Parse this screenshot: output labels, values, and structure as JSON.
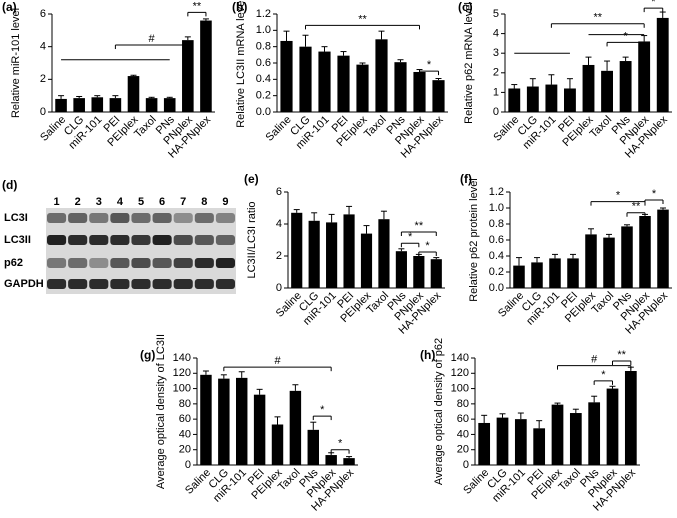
{
  "chart_data": [
    {
      "type": "bar",
      "label": "(a)",
      "y_label": "Relative miR-101 level",
      "categories": [
        "Saline",
        "CLG",
        "miR-101",
        "PEI",
        "PEIplex",
        "Taxol",
        "PNs",
        "PNplex",
        "HA-PNplex"
      ],
      "values": [
        0.8,
        0.85,
        0.9,
        0.85,
        2.2,
        0.85,
        0.85,
        4.4,
        5.6
      ],
      "errors": [
        0.2,
        0.1,
        0.1,
        0.15,
        0.05,
        0.05,
        0.05,
        0.2,
        0.1
      ],
      "color": "#000000",
      "ylim": [
        0,
        6
      ],
      "yticks": [
        0,
        2,
        4,
        6
      ],
      "annotations": [
        "#",
        "**"
      ]
    },
    {
      "type": "bar",
      "label": "(b)",
      "y_label": "Relative LC3II mRNA level",
      "categories": [
        "Saline",
        "CLG",
        "miR-101",
        "PEI",
        "PEIplex",
        "Taxol",
        "PNs",
        "PNplex",
        "HA-PNplex"
      ],
      "values": [
        0.87,
        0.8,
        0.74,
        0.69,
        0.58,
        0.89,
        0.61,
        0.49,
        0.39
      ],
      "errors": [
        0.12,
        0.14,
        0.06,
        0.05,
        0.02,
        0.1,
        0.03,
        0.03,
        0.02
      ],
      "color": "#000000",
      "ylim": [
        0,
        1.2
      ],
      "yticks": [
        {
          "value": 0,
          "label": "0.0"
        },
        0.2,
        0.4,
        0.6,
        0.8,
        {
          "value": 1,
          "label": "1.0"
        },
        1.2
      ],
      "annotations": [
        "**",
        "*"
      ]
    },
    {
      "type": "bar",
      "label": "(c)",
      "y_label": "Relative p62 mRNA level",
      "categories": [
        "Saline",
        "CLG",
        "miR-101",
        "PEI",
        "PEIplex",
        "Taxol",
        "PNs",
        "PNplex",
        "HA-PNplex"
      ],
      "values": [
        1.2,
        1.3,
        1.4,
        1.2,
        2.4,
        2.1,
        2.6,
        3.6,
        4.8
      ],
      "errors": [
        0.2,
        0.4,
        0.5,
        0.5,
        0.4,
        0.5,
        0.2,
        0.3,
        0.3
      ],
      "color": "#000000",
      "ylim": [
        0,
        5
      ],
      "yticks": [
        0,
        1,
        2,
        3,
        4,
        5
      ],
      "annotations": [
        "**",
        "*",
        "*"
      ]
    },
    {
      "type": "bar",
      "label": "(e)",
      "y_label": "LC3II/LC3I ratio",
      "categories": [
        "Saline",
        "CLG",
        "miR-101",
        "PEI",
        "PEIplex",
        "Taxol",
        "PNs",
        "PNplex",
        "HA-PNplex"
      ],
      "values": [
        4.7,
        4.2,
        4.1,
        4.6,
        3.4,
        4.3,
        2.3,
        2.0,
        1.8
      ],
      "errors": [
        0.2,
        0.5,
        0.5,
        0.5,
        0.5,
        0.5,
        0.15,
        0.1,
        0.1
      ],
      "color": "#000000",
      "ylim": [
        0,
        6
      ],
      "yticks": [
        0,
        2,
        4,
        6
      ],
      "annotations": [
        "*",
        "**",
        "*"
      ]
    },
    {
      "type": "bar",
      "label": "(f)",
      "y_label": "Relative p62 protein level",
      "categories": [
        "Saline",
        "CLG",
        "miR-101",
        "PEI",
        "PEIplex",
        "Taxol",
        "PNs",
        "PNplex",
        "HA-PNplex"
      ],
      "values": [
        0.28,
        0.32,
        0.37,
        0.37,
        0.67,
        0.63,
        0.77,
        0.9,
        0.98
      ],
      "errors": [
        0.1,
        0.06,
        0.05,
        0.05,
        0.07,
        0.04,
        0.02,
        0.02,
        0.02
      ],
      "color": "#000000",
      "ylim": [
        0,
        1.2
      ],
      "yticks": [
        {
          "value": 0,
          "label": "0.0"
        },
        0.2,
        0.4,
        0.6,
        0.8,
        {
          "value": 1,
          "label": "1.0"
        },
        1.2
      ],
      "annotations": [
        "*",
        "**",
        "*"
      ]
    },
    {
      "type": "bar",
      "label": "(g)",
      "y_label": "Average optical density of LC3II",
      "categories": [
        "Saline",
        "CLG",
        "miR-101",
        "PEI",
        "PEIplex",
        "Taxol",
        "PNs",
        "PNplex",
        "HA-PNplex"
      ],
      "values": [
        118,
        113,
        114,
        92,
        53,
        97,
        46,
        13,
        9
      ],
      "errors": [
        5,
        5,
        8,
        7,
        10,
        8,
        10,
        3,
        2
      ],
      "color": "#000000",
      "ylim": [
        0,
        140
      ],
      "yticks": [
        0,
        20,
        40,
        60,
        80,
        100,
        120,
        140
      ],
      "annotations": [
        "#",
        "*",
        "*"
      ]
    },
    {
      "type": "bar",
      "label": "(h)",
      "y_label": "Average optical density of p62",
      "categories": [
        "Saline",
        "CLG",
        "miR-101",
        "PEI",
        "PEIplex",
        "Taxol",
        "PNs",
        "PNplex",
        "HA-PNplex"
      ],
      "values": [
        55,
        62,
        60,
        48,
        79,
        68,
        82,
        100,
        123
      ],
      "errors": [
        10,
        5,
        8,
        10,
        2,
        5,
        8,
        3,
        5
      ],
      "color": "#000000",
      "ylim": [
        0,
        140
      ],
      "yticks": [
        0,
        20,
        40,
        60,
        80,
        100,
        120,
        140
      ],
      "annotations": [
        "#",
        "*",
        "**"
      ]
    }
  ],
  "blot": {
    "label": "(d)",
    "lanes": [
      "1",
      "2",
      "3",
      "4",
      "5",
      "6",
      "7",
      "8",
      "9"
    ],
    "rows": [
      "LC3I",
      "LC3II",
      "p62",
      "GAPDH"
    ]
  }
}
